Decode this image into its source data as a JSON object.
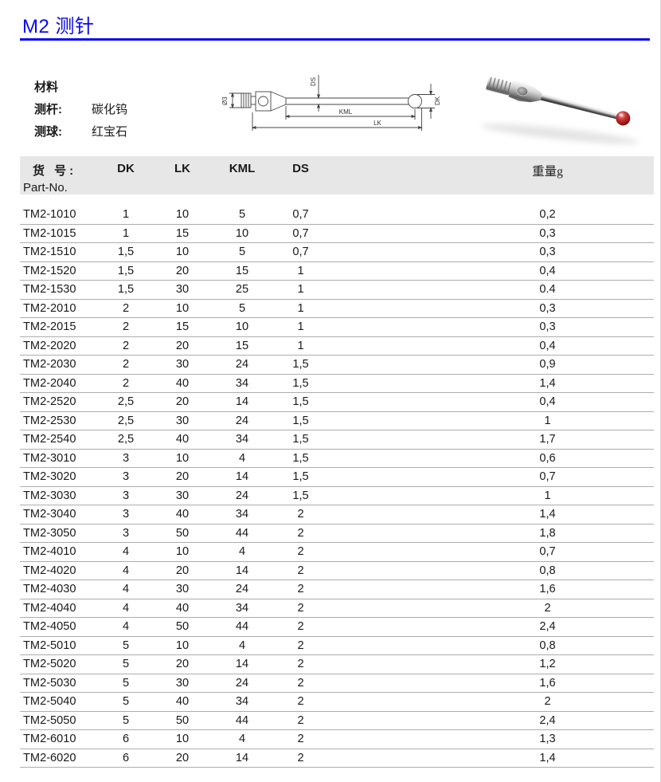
{
  "page": {
    "title": "M2 测针",
    "accent_color": "#0808f0"
  },
  "materials": {
    "heading": "材料",
    "rows": [
      {
        "label": "测杆:",
        "value": "碳化钨"
      },
      {
        "label": "测球:",
        "value": "红宝石"
      }
    ]
  },
  "diagram_labels": {
    "diameter": "Ø3",
    "ds": "DS",
    "dk": "DK",
    "kml": "KML",
    "lk": "LK"
  },
  "table": {
    "header": {
      "part_no_zh": "货 号:",
      "part_no_en": "Part-No.",
      "dk": "DK",
      "lk": "LK",
      "kml": "KML",
      "ds": "DS",
      "weight": "重量g"
    },
    "columns": [
      "part_no",
      "dk",
      "lk",
      "kml",
      "ds",
      "weight_g"
    ],
    "rows": [
      [
        "TM2-1010",
        "1",
        "10",
        "5",
        "0,7",
        "0,2"
      ],
      [
        "TM2-1015",
        "1",
        "15",
        "10",
        "0,7",
        "0,3"
      ],
      [
        "TM2-1510",
        "1,5",
        "10",
        "5",
        "0,7",
        "0,3"
      ],
      [
        "TM2-1520",
        "1,5",
        "20",
        "15",
        "1",
        "0,4"
      ],
      [
        "TM2-1530",
        "1,5",
        "30",
        "25",
        "1",
        "0.4"
      ],
      [
        "TM2-2010",
        "2",
        "10",
        "5",
        "1",
        "0,3"
      ],
      [
        "TM2-2015",
        "2",
        "15",
        "10",
        "1",
        "0,3"
      ],
      [
        "TM2-2020",
        "2",
        "20",
        "15",
        "1",
        "0,4"
      ],
      [
        "TM2-2030",
        "2",
        "30",
        "24",
        "1,5",
        "0,9"
      ],
      [
        "TM2-2040",
        "2",
        "40",
        "34",
        "1,5",
        "1,4"
      ],
      [
        "TM2-2520",
        "2,5",
        "20",
        "14",
        "1,5",
        "0,4"
      ],
      [
        "TM2-2530",
        "2,5",
        "30",
        "24",
        "1,5",
        "1"
      ],
      [
        "TM2-2540",
        "2,5",
        "40",
        "34",
        "1,5",
        "1,7"
      ],
      [
        "TM2-3010",
        "3",
        "10",
        "4",
        "1,5",
        "0,6"
      ],
      [
        "TM2-3020",
        "3",
        "20",
        "14",
        "1,5",
        "0,7"
      ],
      [
        "TM2-3030",
        "3",
        "30",
        "24",
        "1,5",
        "1"
      ],
      [
        "TM2-3040",
        "3",
        "40",
        "34",
        "2",
        "1,4"
      ],
      [
        "TM2-3050",
        "3",
        "50",
        "44",
        "2",
        "1,8"
      ],
      [
        "TM2-4010",
        "4",
        "10",
        "4",
        "2",
        "0,7"
      ],
      [
        "TM2-4020",
        "4",
        "20",
        "14",
        "2",
        "0,8"
      ],
      [
        "TM2-4030",
        "4",
        "30",
        "24",
        "2",
        "1,6"
      ],
      [
        "TM2-4040",
        "4",
        "40",
        "34",
        "2",
        "2"
      ],
      [
        "TM2-4050",
        "4",
        "50",
        "44",
        "2",
        "2,4"
      ],
      [
        "TM2-5010",
        "5",
        "10",
        "4",
        "2",
        "0,8"
      ],
      [
        "TM2-5020",
        "5",
        "20",
        "14",
        "2",
        "1,2"
      ],
      [
        "TM2-5030",
        "5",
        "30",
        "24",
        "2",
        "1,6"
      ],
      [
        "TM2-5040",
        "5",
        "40",
        "34",
        "2",
        "2"
      ],
      [
        "TM2-5050",
        "5",
        "50",
        "44",
        "2",
        "2,4"
      ],
      [
        "TM2-6010",
        "6",
        "10",
        "4",
        "2",
        "1,3"
      ],
      [
        "TM2-6020",
        "6",
        "20",
        "14",
        "2",
        "1,4"
      ]
    ]
  }
}
